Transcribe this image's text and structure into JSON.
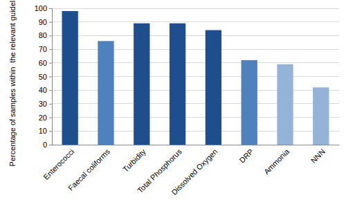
{
  "chart_data": {
    "type": "bar",
    "y_label": "Percentage of samples within  the relevant guidelines",
    "categories": [
      "Enterococci",
      "Faecal coliforms",
      "Turbidity",
      "Total Phosphorus",
      "Dissolved Oxygen",
      "DRP",
      "Ammonia",
      "NNN"
    ],
    "values": [
      98,
      76,
      89,
      89,
      84,
      62,
      59,
      42
    ],
    "colors": [
      "#1f4e8c",
      "#4f81bd",
      "#1f4e8c",
      "#1f4e8c",
      "#1f4e8c",
      "#4f81bd",
      "#95b3d7",
      "#95b3d7"
    ],
    "ylim": [
      0,
      100
    ],
    "yticks": [
      0,
      10,
      20,
      30,
      40,
      50,
      60,
      70,
      80,
      90,
      100
    ],
    "grid": true
  }
}
